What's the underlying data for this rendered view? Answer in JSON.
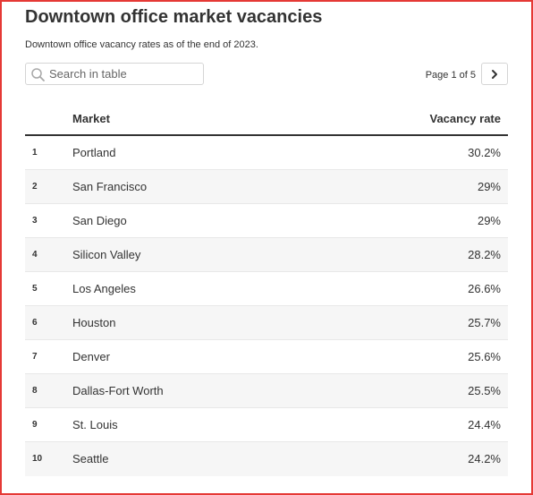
{
  "title": "Downtown office market vacancies",
  "subtitle": "Downtown office vacancy rates as of the end of 2023.",
  "search": {
    "placeholder": "Search in table"
  },
  "pagination": {
    "label": "Page 1 of 5"
  },
  "table": {
    "columns": {
      "market": "Market",
      "rate": "Vacancy rate"
    },
    "rows": [
      {
        "rank": "1",
        "market": "Portland",
        "rate": "30.2%"
      },
      {
        "rank": "2",
        "market": "San Francisco",
        "rate": "29%"
      },
      {
        "rank": "3",
        "market": "San Diego",
        "rate": "29%"
      },
      {
        "rank": "4",
        "market": "Silicon Valley",
        "rate": "28.2%"
      },
      {
        "rank": "5",
        "market": "Los Angeles",
        "rate": "26.6%"
      },
      {
        "rank": "6",
        "market": "Houston",
        "rate": "25.7%"
      },
      {
        "rank": "7",
        "market": "Denver",
        "rate": "25.6%"
      },
      {
        "rank": "8",
        "market": "Dallas-Fort Worth",
        "rate": "25.5%"
      },
      {
        "rank": "9",
        "market": "St. Louis",
        "rate": "24.4%"
      },
      {
        "rank": "10",
        "market": "Seattle",
        "rate": "24.2%"
      }
    ]
  },
  "colors": {
    "frame": "#e53935",
    "text": "#333333",
    "stripe": "#f6f6f6"
  }
}
